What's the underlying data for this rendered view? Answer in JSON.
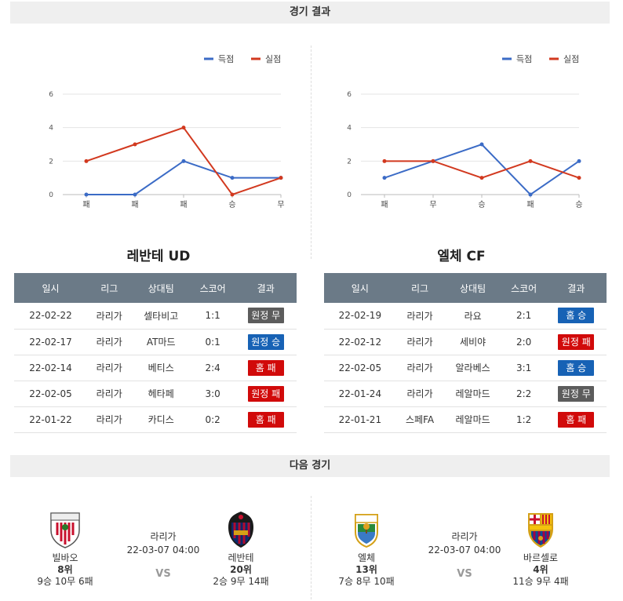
{
  "results_section": {
    "title": "경기 결과"
  },
  "next_section": {
    "title": "다음 경기"
  },
  "legend": {
    "scored": "득점",
    "conceded": "실점"
  },
  "colors": {
    "scored": "#3b6bc6",
    "conceded": "#d2391f",
    "win": "#1762b5",
    "loss": "#d10a0a",
    "draw": "#5c5c5c",
    "header": "#6b7a87"
  },
  "table_headers": [
    "일시",
    "리그",
    "상대팀",
    "스코어",
    "결과"
  ],
  "chart_data": [
    {
      "type": "line",
      "categories": [
        "패",
        "패",
        "패",
        "승",
        "무"
      ],
      "ylim": [
        0,
        6
      ],
      "yticks": [
        0,
        2,
        4,
        6
      ],
      "grid": true,
      "legend_position": "top-right",
      "series": [
        {
          "name": "득점",
          "values": [
            0,
            0,
            2,
            1,
            1
          ]
        },
        {
          "name": "실점",
          "values": [
            2,
            3,
            4,
            0,
            1
          ]
        }
      ]
    },
    {
      "type": "line",
      "categories": [
        "패",
        "무",
        "승",
        "패",
        "승"
      ],
      "ylim": [
        0,
        6
      ],
      "yticks": [
        0,
        2,
        4,
        6
      ],
      "grid": true,
      "legend_position": "top-right",
      "series": [
        {
          "name": "득점",
          "values": [
            1,
            2,
            3,
            0,
            2
          ]
        },
        {
          "name": "실점",
          "values": [
            2,
            2,
            1,
            2,
            1
          ]
        }
      ]
    }
  ],
  "teams": [
    {
      "name": "레반테 UD",
      "matches": [
        {
          "date": "22-02-22",
          "league": "라리가",
          "opponent": "셀타비고",
          "score": "1:1",
          "result": "원정 무",
          "kind": "draw"
        },
        {
          "date": "22-02-17",
          "league": "라리가",
          "opponent": "AT마드",
          "score": "0:1",
          "result": "원정 승",
          "kind": "win"
        },
        {
          "date": "22-02-14",
          "league": "라리가",
          "opponent": "베티스",
          "score": "2:4",
          "result": "홈 패",
          "kind": "loss"
        },
        {
          "date": "22-02-05",
          "league": "라리가",
          "opponent": "헤타페",
          "score": "3:0",
          "result": "원정 패",
          "kind": "loss"
        },
        {
          "date": "22-01-22",
          "league": "라리가",
          "opponent": "카디스",
          "score": "0:2",
          "result": "홈 패",
          "kind": "loss"
        }
      ]
    },
    {
      "name": "엘체 CF",
      "matches": [
        {
          "date": "22-02-19",
          "league": "라리가",
          "opponent": "라요",
          "score": "2:1",
          "result": "홈 승",
          "kind": "win"
        },
        {
          "date": "22-02-12",
          "league": "라리가",
          "opponent": "세비야",
          "score": "2:0",
          "result": "원정 패",
          "kind": "loss"
        },
        {
          "date": "22-02-05",
          "league": "라리가",
          "opponent": "알라베스",
          "score": "3:1",
          "result": "홈 승",
          "kind": "win"
        },
        {
          "date": "22-01-24",
          "league": "라리가",
          "opponent": "레알마드",
          "score": "2:2",
          "result": "원정 무",
          "kind": "draw"
        },
        {
          "date": "22-01-21",
          "league": "스페FA",
          "opponent": "레알마드",
          "score": "1:2",
          "result": "홈 패",
          "kind": "loss"
        }
      ]
    }
  ],
  "next_matches": [
    {
      "league": "라리가",
      "datetime": "22-03-07 04:00",
      "vs": "VS",
      "home": {
        "name": "빌바오",
        "rank": "8위",
        "record": "9승 10무 6패",
        "logo": "athletic-club-crest-icon"
      },
      "away": {
        "name": "레반테",
        "rank": "20위",
        "record": "2승 9무 14패",
        "logo": "levante-crest-icon"
      }
    },
    {
      "league": "라리가",
      "datetime": "22-03-07 04:00",
      "vs": "VS",
      "home": {
        "name": "엘체",
        "rank": "13위",
        "record": "7승 8무 10패",
        "logo": "elche-crest-icon"
      },
      "away": {
        "name": "바르셀로",
        "rank": "4위",
        "record": "11승 9무 4패",
        "logo": "barcelona-crest-icon"
      }
    }
  ]
}
